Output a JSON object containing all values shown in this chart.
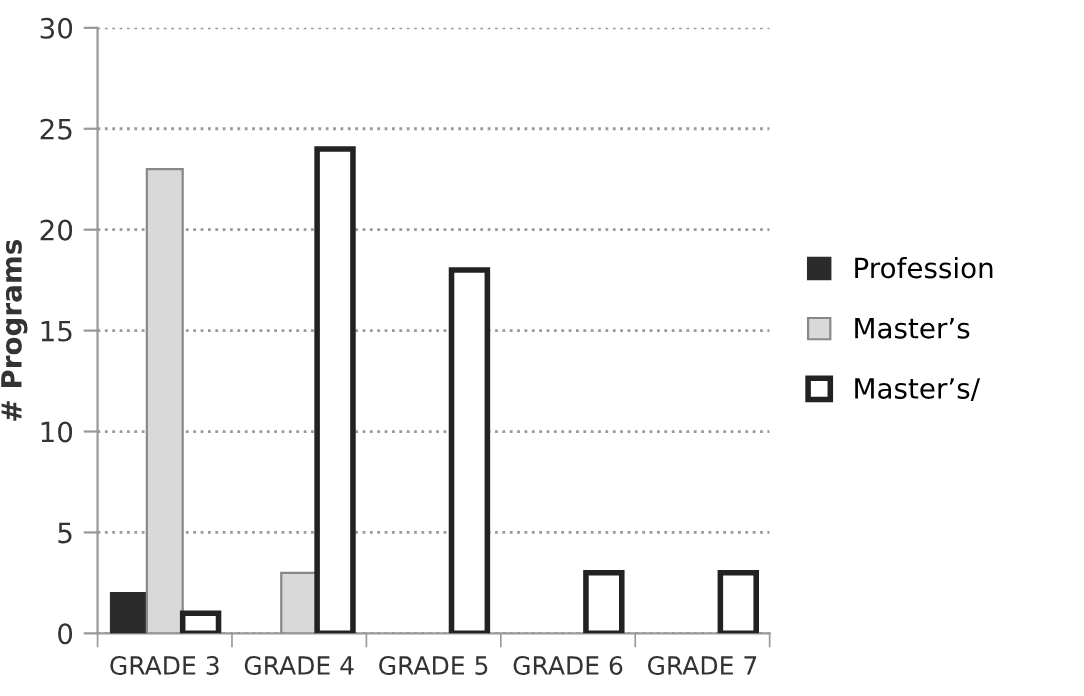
{
  "chart_data": {
    "type": "bar",
    "ylabel": "# Programs",
    "categories": [
      "GRADE 3",
      "GRADE 4",
      "GRADE 5",
      "GRADE 6",
      "GRADE 7"
    ],
    "series": [
      {
        "name": "Profession",
        "color": "#2b2b2b",
        "values": [
          2,
          null,
          null,
          null,
          null
        ]
      },
      {
        "name": "Master’s",
        "color": "#d9d9d9",
        "values": [
          23,
          3,
          null,
          null,
          null
        ]
      },
      {
        "name": "Master’s/",
        "color": "#ffffff",
        "values": [
          1,
          24,
          18,
          3,
          3
        ]
      }
    ],
    "ylim": [
      0,
      30
    ],
    "yticks": [
      0,
      5,
      10,
      15,
      20,
      25,
      30
    ],
    "grid": "y",
    "legend": "right"
  }
}
